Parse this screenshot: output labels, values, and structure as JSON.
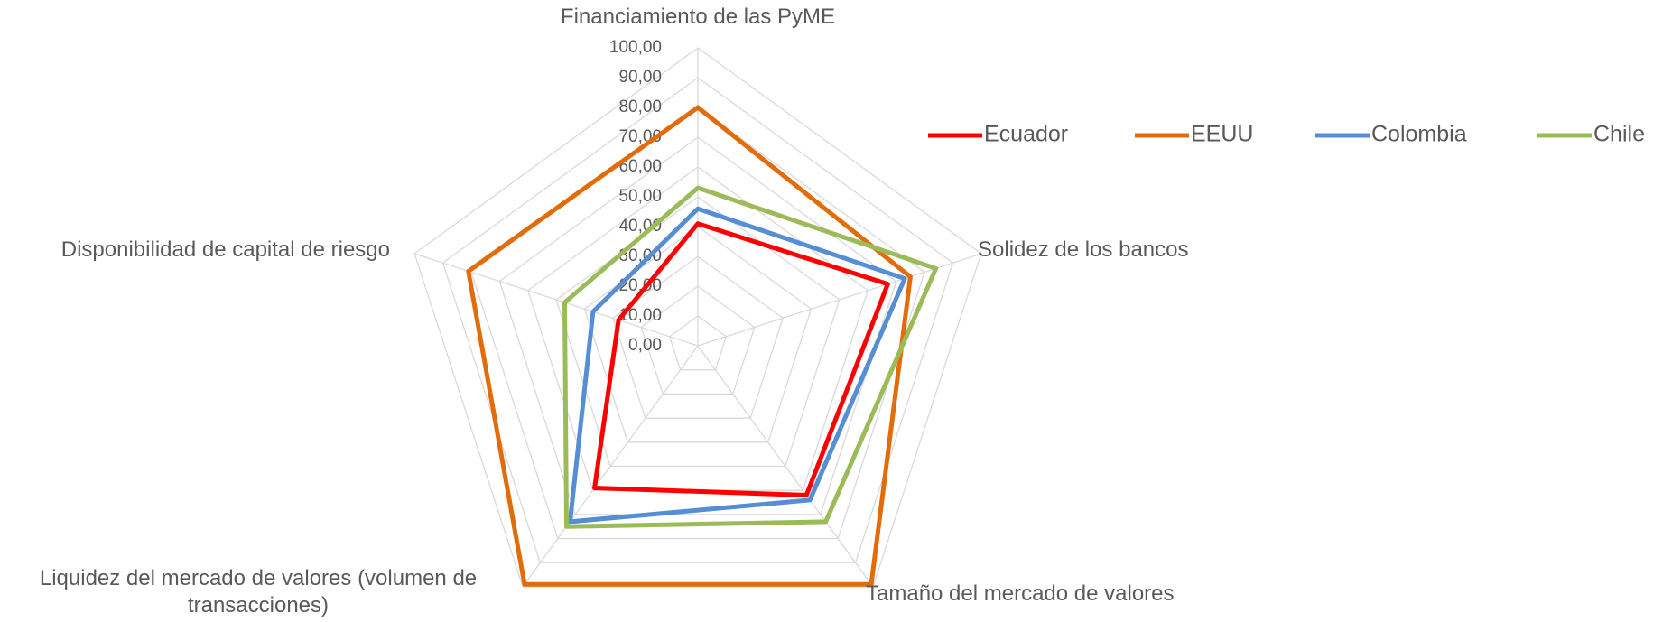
{
  "chart_data": {
    "type": "radar",
    "categories": [
      "Financiamiento de las PyME",
      "Solidez de los bancos",
      "Tamaño del mercado de valores",
      "Liquidez del mercado de valores (volumen de transacciones)",
      "Disponibilidad de capital de riesgo"
    ],
    "series": [
      {
        "name": "Ecuador",
        "color": "#ff0000",
        "values": [
          41,
          67,
          62,
          59,
          28
        ]
      },
      {
        "name": "EEUU",
        "color": "#e36c0a",
        "values": [
          80,
          75,
          99,
          99,
          81
        ]
      },
      {
        "name": "Colombia",
        "color": "#558ed5",
        "values": [
          46,
          73,
          64,
          73,
          37
        ]
      },
      {
        "name": "Chile",
        "color": "#9bbb59",
        "values": [
          53,
          84,
          73,
          75,
          47
        ]
      }
    ],
    "ylim": [
      0,
      100
    ],
    "yticks": [
      {
        "value": 0,
        "label": "0,00"
      },
      {
        "value": 10,
        "label": "10,00"
      },
      {
        "value": 20,
        "label": "20,00"
      },
      {
        "value": 30,
        "label": "30,00"
      },
      {
        "value": 40,
        "label": "40,00"
      },
      {
        "value": 50,
        "label": "50,00"
      },
      {
        "value": 60,
        "label": "60,00"
      },
      {
        "value": 70,
        "label": "70,00"
      },
      {
        "value": 80,
        "label": "80,00"
      },
      {
        "value": 90,
        "label": "90,00"
      },
      {
        "value": 100,
        "label": "100,00"
      }
    ],
    "grid": true,
    "legend": "top-right"
  }
}
